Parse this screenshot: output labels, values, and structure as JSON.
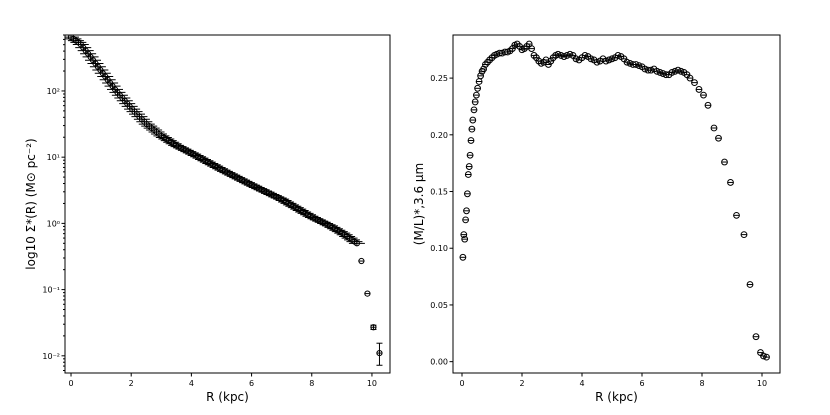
{
  "chart_data": [
    {
      "type": "scatter",
      "xlabel": "R (kpc)",
      "ylabel": "log10 Σ*(R) (M⊙ pc⁻²)",
      "yscale": "log",
      "xlim": [
        -0.2,
        10.6
      ],
      "ylim": [
        0.0055,
        700
      ],
      "xticks": [
        0,
        2,
        4,
        6,
        8,
        10
      ],
      "yticks": [
        0.01,
        0.1,
        1,
        10,
        100
      ],
      "ytick_labels": [
        "10⁻²",
        "10⁻¹",
        "10⁰",
        "10¹",
        "10²"
      ],
      "grid": false,
      "profile": {
        "x_start": 0.0,
        "x_end": 9.5,
        "n": 118,
        "knots_x": [
          0,
          0.3,
          0.6,
          1.0,
          1.5,
          2.0,
          2.5,
          3.0,
          3.5,
          4.0,
          5.0,
          6.0,
          7.0,
          8.0,
          8.6,
          9.0,
          9.3,
          9.5
        ],
        "knots_y": [
          650,
          520,
          350,
          200,
          100,
          55,
          32,
          21,
          15,
          11.5,
          6.5,
          3.8,
          2.3,
          1.25,
          0.92,
          0.72,
          0.58,
          0.5
        ]
      },
      "points": [
        {
          "x": 9.65,
          "y": 0.27,
          "xerr": 0.2,
          "yerr": 0
        },
        {
          "x": 9.85,
          "y": 0.087,
          "xerr": 0.2,
          "yerr": 0
        },
        {
          "x": 10.05,
          "y": 0.027,
          "xerr": 0.2,
          "yerr_lo": 0.002,
          "yerr_hi": 0.002
        },
        {
          "x": 10.25,
          "y": 0.011,
          "xerr": 0.2,
          "yerr_lo": 0.0038,
          "yerr_hi": 0.0045
        }
      ]
    },
    {
      "type": "scatter",
      "xlabel": "R (kpc)",
      "ylabel": "(M/L)*,3.6 μm",
      "xlim": [
        -0.3,
        10.6
      ],
      "ylim": [
        -0.01,
        0.288
      ],
      "xticks": [
        0,
        2,
        4,
        6,
        8,
        10
      ],
      "yticks": [
        0.0,
        0.05,
        0.1,
        0.15,
        0.2,
        0.25
      ],
      "ytick_labels": [
        "0.00",
        "0.05",
        "0.10",
        "0.15",
        "0.20",
        "0.25"
      ],
      "grid": false,
      "x": [
        0.03,
        0.06,
        0.09,
        0.12,
        0.15,
        0.18,
        0.21,
        0.24,
        0.27,
        0.3,
        0.33,
        0.36,
        0.4,
        0.44,
        0.48,
        0.52,
        0.57,
        0.62,
        0.67,
        0.72,
        0.78,
        0.85,
        0.92,
        1.0,
        1.08,
        1.16,
        1.25,
        1.34,
        1.43,
        1.52,
        1.6,
        1.68,
        1.76,
        1.84,
        1.92,
        2.0,
        2.08,
        2.16,
        2.24,
        2.32,
        2.4,
        2.48,
        2.56,
        2.64,
        2.72,
        2.8,
        2.88,
        2.96,
        3.04,
        3.12,
        3.2,
        3.3,
        3.4,
        3.5,
        3.6,
        3.7,
        3.8,
        3.9,
        4.0,
        4.1,
        4.2,
        4.3,
        4.4,
        4.5,
        4.6,
        4.7,
        4.8,
        4.9,
        5.0,
        5.1,
        5.2,
        5.3,
        5.4,
        5.5,
        5.6,
        5.7,
        5.8,
        5.9,
        6.0,
        6.1,
        6.2,
        6.3,
        6.4,
        6.5,
        6.6,
        6.7,
        6.8,
        6.9,
        7.0,
        7.1,
        7.2,
        7.3,
        7.4,
        7.5,
        7.6,
        7.75,
        7.9,
        8.05,
        8.2,
        8.4,
        8.55,
        8.75,
        8.95,
        9.15,
        9.4,
        9.6,
        9.8,
        9.95,
        10.05,
        10.15
      ],
      "y": [
        0.092,
        0.112,
        0.108,
        0.125,
        0.133,
        0.148,
        0.165,
        0.172,
        0.182,
        0.195,
        0.205,
        0.213,
        0.222,
        0.229,
        0.235,
        0.241,
        0.247,
        0.252,
        0.256,
        0.258,
        0.262,
        0.264,
        0.266,
        0.268,
        0.27,
        0.271,
        0.272,
        0.272,
        0.273,
        0.273,
        0.274,
        0.276,
        0.279,
        0.28,
        0.278,
        0.275,
        0.276,
        0.278,
        0.28,
        0.276,
        0.27,
        0.268,
        0.265,
        0.263,
        0.264,
        0.266,
        0.262,
        0.265,
        0.268,
        0.27,
        0.271,
        0.27,
        0.269,
        0.27,
        0.271,
        0.27,
        0.267,
        0.266,
        0.268,
        0.27,
        0.269,
        0.267,
        0.266,
        0.264,
        0.265,
        0.267,
        0.265,
        0.266,
        0.267,
        0.268,
        0.27,
        0.269,
        0.267,
        0.264,
        0.263,
        0.262,
        0.262,
        0.261,
        0.26,
        0.258,
        0.257,
        0.257,
        0.258,
        0.256,
        0.255,
        0.254,
        0.253,
        0.253,
        0.255,
        0.256,
        0.257,
        0.256,
        0.255,
        0.253,
        0.25,
        0.246,
        0.24,
        0.235,
        0.226,
        0.206,
        0.197,
        0.176,
        0.158,
        0.129,
        0.112,
        0.068,
        0.022,
        0.008,
        0.005,
        0.004
      ]
    }
  ]
}
